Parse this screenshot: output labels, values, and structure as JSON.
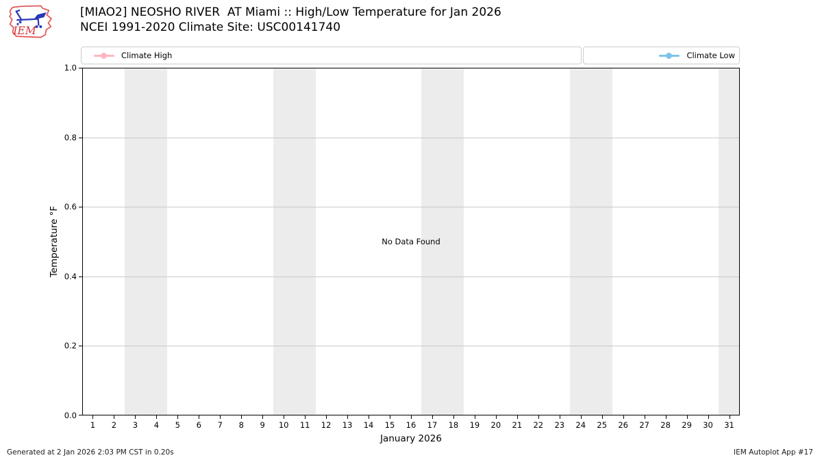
{
  "header": {
    "title_line1": "[MIAO2] NEOSHO RIVER  AT Miami :: High/Low Temperature for Jan 2026",
    "title_line2": "NCEI 1991-2020 Climate Site: USC00141740",
    "logo_text": "IEM"
  },
  "legend": {
    "entries": [
      {
        "label": "Climate High",
        "color": "#ffb6c1"
      },
      {
        "label": "Climate Low",
        "color": "#7cc4e6"
      }
    ]
  },
  "footer": {
    "generated": "Generated at 2 Jan 2026 2:03 PM CST in 0.20s",
    "app": "IEM Autoplot App #17"
  },
  "chart_data": {
    "type": "line",
    "title": "[MIAO2] NEOSHO RIVER  AT Miami :: High/Low Temperature for Jan 2026",
    "subtitle": "NCEI 1991-2020 Climate Site: USC00141740",
    "xlabel": "January 2026",
    "ylabel": "Temperature °F",
    "xlim": [
      0.5,
      31.5
    ],
    "ylim": [
      0.0,
      1.0
    ],
    "x_ticks": [
      1,
      2,
      3,
      4,
      5,
      6,
      7,
      8,
      9,
      10,
      11,
      12,
      13,
      14,
      15,
      16,
      17,
      18,
      19,
      20,
      21,
      22,
      23,
      24,
      25,
      26,
      27,
      28,
      29,
      30,
      31
    ],
    "y_ticks": [
      "0.0",
      "0.2",
      "0.4",
      "0.6",
      "0.8",
      "1.0"
    ],
    "grid": true,
    "series": [
      {
        "name": "Climate High",
        "color": "#ffb6c1",
        "x": [],
        "y": []
      },
      {
        "name": "Climate Low",
        "color": "#7cc4e6",
        "x": [],
        "y": []
      }
    ],
    "no_data_text": "No Data Found",
    "weekend_bands": [
      [
        2.5,
        4.5
      ],
      [
        9.5,
        11.5
      ],
      [
        16.5,
        18.5
      ],
      [
        23.5,
        25.5
      ],
      [
        30.5,
        31.5
      ]
    ],
    "band_color": "#ececec",
    "grid_color": "#c9c9c9"
  }
}
